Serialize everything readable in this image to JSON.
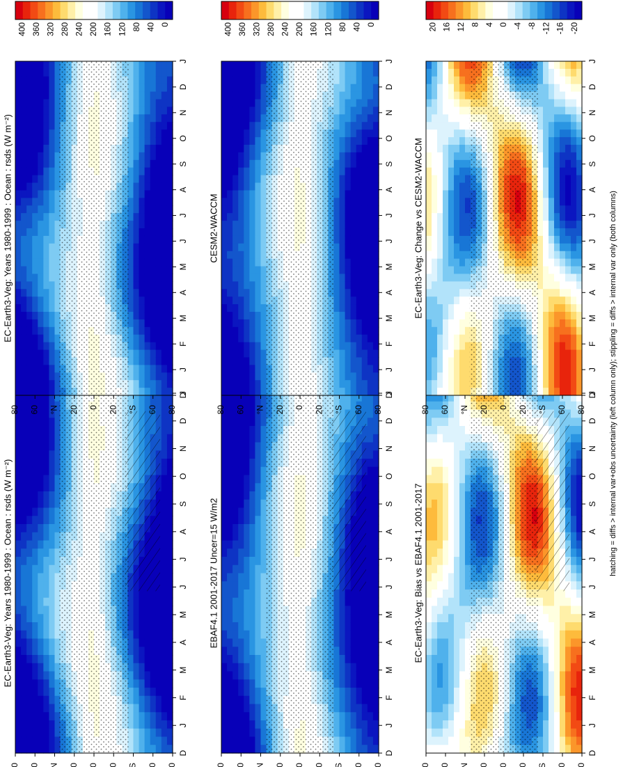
{
  "footnote": "hatching = diffs > internal var+obs uncertainty (left column only); stippling = diffs > internal var only (both columns)",
  "month_ticks": [
    "D",
    "J",
    "F",
    "M",
    "A",
    "M",
    "J",
    "J",
    "A",
    "S",
    "O",
    "N",
    "D",
    "J"
  ],
  "lat_ticks": [
    "80",
    "60",
    "°N",
    "20",
    "0",
    "20",
    "°S",
    "60",
    "80"
  ],
  "colorbars": {
    "rsds": {
      "labels": [
        "400",
        "360",
        "320",
        "280",
        "240",
        "200",
        "160",
        "120",
        "80",
        "40",
        "0"
      ],
      "colors": [
        "#d7000f",
        "#e8240c",
        "#f24a14",
        "#f7701e",
        "#fb962a",
        "#fdbb3c",
        "#fedb6e",
        "#fff0a8",
        "#ffffe0",
        "#ffffff",
        "#ffffff",
        "#ddf3fd",
        "#b2e3fa",
        "#7ecbf3",
        "#4fb1ec",
        "#2a95e2",
        "#1876d6",
        "#1356cc",
        "#0e34c4",
        "#0b16c0",
        "#0800b8"
      ]
    },
    "diff": {
      "labels": [
        "20",
        "16",
        "12",
        "8",
        "4",
        "0",
        "-4",
        "-8",
        "-12",
        "-16",
        "-20"
      ],
      "colors": [
        "#d7000f",
        "#e8240c",
        "#f24a14",
        "#f7701e",
        "#fb962a",
        "#fdbb3c",
        "#fedb6e",
        "#fff0a8",
        "#ffffe0",
        "#ffffff",
        "#ffffff",
        "#ddf3fd",
        "#b2e3fa",
        "#7ecbf3",
        "#4fb1ec",
        "#2a95e2",
        "#1876d6",
        "#1356cc",
        "#0e34c4",
        "#0b16c0",
        "#0800b8"
      ]
    }
  },
  "chart_data": [
    {
      "type": "heatmap",
      "title": "EC-Earth3-Veg: Years 1980-1999 : Ocean : rsds (W m⁻²)",
      "x": "month (D to J)",
      "y": "latitude",
      "colorbar": "rsds",
      "range": [
        0,
        400
      ],
      "hatching": true,
      "stippling": true
    },
    {
      "type": "heatmap",
      "title": "EC-Earth3-Veg: Years 1980-1999 : Ocean : rsds (W m⁻²)",
      "colorbar": "rsds",
      "range": [
        0,
        400
      ],
      "hatching": false,
      "stippling": true
    },
    {
      "type": "heatmap",
      "title": "EBAF4.1 2001-2017 Uncer=15 W/m2",
      "colorbar": "rsds",
      "range": [
        0,
        400
      ],
      "hatching": true,
      "stippling": true
    },
    {
      "type": "heatmap",
      "title": "CESM2-WACCM",
      "colorbar": "rsds",
      "range": [
        0,
        400
      ],
      "hatching": false,
      "stippling": true
    },
    {
      "type": "heatmap",
      "title": "EC-Earth3-Veg: Bias vs EBAF4.1 2001-2017",
      "colorbar": "diff",
      "range": [
        -20,
        20
      ],
      "hatching": true,
      "stippling": true
    },
    {
      "type": "heatmap",
      "title": "EC-Earth3-Veg: Change vs CESM2-WACCM",
      "colorbar": "diff",
      "range": [
        -20,
        20
      ],
      "hatching": false,
      "stippling": true
    }
  ]
}
